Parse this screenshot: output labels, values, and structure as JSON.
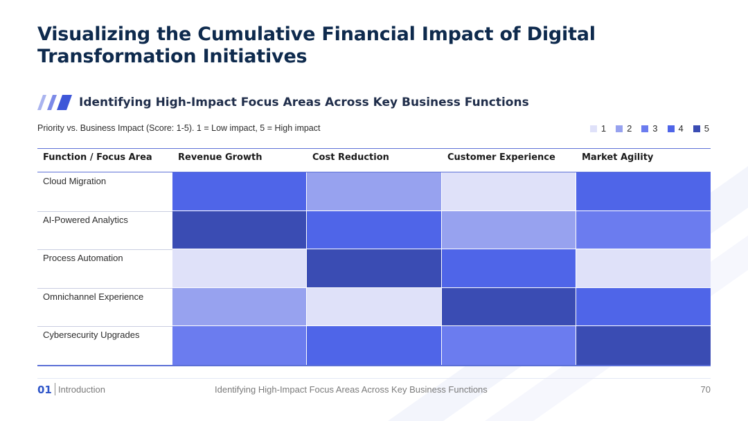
{
  "title": "Visualizing the Cumulative Financial Impact of Digital Transformation Initiatives",
  "subtitle": "Identifying High-Impact Focus Areas Across Key Business Functions",
  "caption": "Priority vs. Business Impact (Score: 1-5). 1 = Low impact, 5 = High impact",
  "colors": {
    "title": "#0e2a4d",
    "accent": "#3e57d8",
    "scale": [
      "#dfe1f9",
      "#97a2ef",
      "#6b7cef",
      "#4f65e8",
      "#3a4cb3"
    ]
  },
  "legend": [
    {
      "label": "1",
      "level": 1
    },
    {
      "label": "2",
      "level": 2
    },
    {
      "label": "3",
      "level": 3
    },
    {
      "label": "4",
      "level": 4
    },
    {
      "label": "5",
      "level": 5
    }
  ],
  "chart_data": {
    "type": "heatmap",
    "title": "Identifying High-Impact Focus Areas Across Key Business Functions",
    "row_header": "Function / Focus Area",
    "columns": [
      "Revenue Growth",
      "Cost Reduction",
      "Customer Experience",
      "Market Agility"
    ],
    "rows": [
      "Cloud Migration",
      "AI-Powered Analytics",
      "Process Automation",
      "Omnichannel Experience",
      "Cybersecurity Upgrades"
    ],
    "values": [
      [
        4,
        2,
        1,
        4
      ],
      [
        5,
        4,
        2,
        3
      ],
      [
        1,
        5,
        4,
        1
      ],
      [
        2,
        1,
        5,
        4
      ],
      [
        3,
        4,
        3,
        5
      ]
    ],
    "scale_min": 1,
    "scale_max": 5
  },
  "footer": {
    "number": "01",
    "section": "Introduction",
    "center": "Identifying High-Impact Focus Areas Across Key Business Functions",
    "page": "70"
  }
}
